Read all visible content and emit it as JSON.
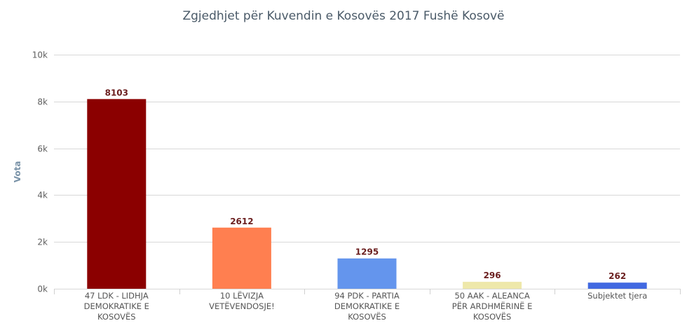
{
  "chart_data": {
    "type": "bar",
    "title": "Zgjedhjet për Kuvendin e Kosovës 2017 Fushë Kosovë",
    "ylabel": "Vota",
    "xlabel": "",
    "ylim": [
      0,
      10000
    ],
    "yticks": [
      {
        "value": 0,
        "label": "0k"
      },
      {
        "value": 2000,
        "label": "2k"
      },
      {
        "value": 4000,
        "label": "4k"
      },
      {
        "value": 6000,
        "label": "6k"
      },
      {
        "value": 8000,
        "label": "8k"
      },
      {
        "value": 10000,
        "label": "10k"
      }
    ],
    "grid": true,
    "legend": "none",
    "categories": [
      [
        "47 LDK - LIDHJA",
        "DEMOKRATIKE E",
        "KOSOVËS"
      ],
      [
        "10 LËVIZJA",
        "VETËVENDOSJE!"
      ],
      [
        "94 PDK - PARTIA",
        "DEMOKRATIKE E",
        "KOSOVËS"
      ],
      [
        "50 AAK - ALEANCA",
        "PËR ARDHMËRINË E",
        "KOSOVËS"
      ],
      [
        "Subjektet tjera"
      ]
    ],
    "values": [
      8103,
      2612,
      1295,
      296,
      262
    ],
    "colors": [
      "#8b0000",
      "#ff7f50",
      "#6495ed",
      "#eee8aa",
      "#4169e1"
    ]
  }
}
